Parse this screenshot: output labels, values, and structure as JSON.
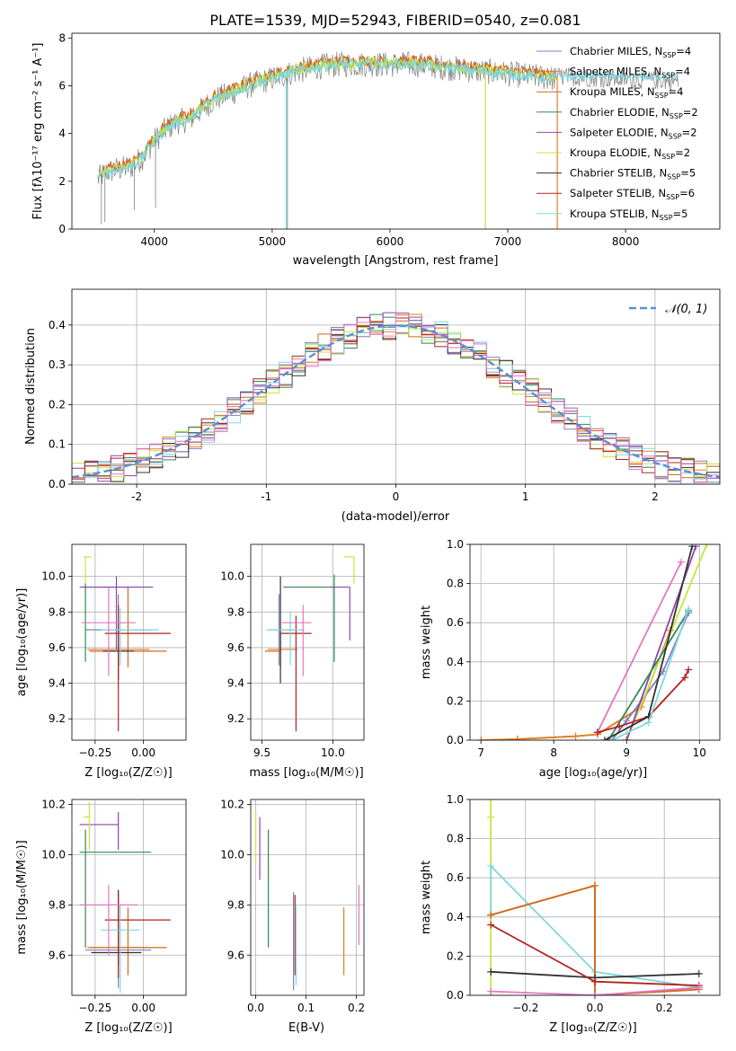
{
  "figure_title": "PLATE=1539, MJD=52943, FIBERID=0540, z=0.081",
  "colors": {
    "chabrier_miles": "#7f7fbf",
    "salpeter_miles": "#e67e22",
    "kroupa_miles": "#d2691e",
    "chabrier_elodie": "#2e8b57",
    "salpeter_elodie": "#8e44ad",
    "kroupa_elodie": "#c7e63a",
    "chabrier_stelib": "#333333",
    "salpeter_stelib": "#b22222",
    "kroupa_stelib": "#7fd7e0",
    "pink": "#e377c2",
    "normal": "#5b8ed6",
    "data": "#808080"
  },
  "chart_data": [
    {
      "id": "spectrum",
      "type": "line",
      "title": "PLATE=1539, MJD=52943, FIBERID=0540, z=0.081",
      "xlabel": "wavelength [Angstrom, rest frame]",
      "ylabel": "Flux [fλ10⁻¹⁷ erg cm⁻² s⁻¹ A⁻¹]",
      "xlim": [
        3300,
        8800
      ],
      "ylim": [
        0,
        8.2
      ],
      "xticks": [
        4000,
        5000,
        6000,
        7000,
        8000
      ],
      "yticks": [
        0,
        2,
        4,
        6,
        8
      ],
      "grid": false,
      "legend_position": "right",
      "legend": [
        {
          "label": "Chabrier MILES, N",
          "sub": "SSP",
          "suffix": "=4",
          "color_key": "chabrier_miles"
        },
        {
          "label": "Salpeter MILES, N",
          "sub": "SSP",
          "suffix": "=4",
          "color_key": "salpeter_miles"
        },
        {
          "label": "Kroupa MILES, N",
          "sub": "SSP",
          "suffix": "=4",
          "color_key": "kroupa_miles"
        },
        {
          "label": "Chabrier ELODIE, N",
          "sub": "SSP",
          "suffix": "=2",
          "color_key": "chabrier_elodie"
        },
        {
          "label": "Salpeter ELODIE, N",
          "sub": "SSP",
          "suffix": "=2",
          "color_key": "salpeter_elodie"
        },
        {
          "label": "Kroupa ELODIE, N",
          "sub": "SSP",
          "suffix": "=2",
          "color_key": "kroupa_elodie"
        },
        {
          "label": "Chabrier STELIB, N",
          "sub": "SSP",
          "suffix": "=5",
          "color_key": "chabrier_stelib"
        },
        {
          "label": "Salpeter STELIB, N",
          "sub": "SSP",
          "suffix": "=6",
          "color_key": "salpeter_stelib"
        },
        {
          "label": "Kroupa STELIB, N",
          "sub": "SSP",
          "suffix": "=5",
          "color_key": "kroupa_stelib"
        }
      ],
      "continuum": {
        "x": [
          3520,
          3600,
          3700,
          3800,
          3900,
          4000,
          4100,
          4200,
          4300,
          4400,
          4500,
          4600,
          4800,
          5000,
          5200,
          5400,
          5600,
          5800,
          6000,
          6200,
          6400,
          6600,
          6800,
          7000,
          7200,
          7400
        ],
        "y": [
          2.1,
          2.4,
          2.5,
          2.6,
          3.0,
          3.7,
          4.2,
          4.5,
          4.6,
          5.0,
          5.4,
          5.6,
          6.0,
          6.3,
          6.6,
          6.8,
          6.9,
          6.9,
          6.9,
          6.9,
          6.8,
          6.7,
          6.6,
          6.5,
          6.4,
          6.3
        ]
      }
    },
    {
      "id": "residuals",
      "type": "step",
      "xlabel": "(data-model)/error",
      "ylabel": "Normed distribution",
      "xlim": [
        -2.5,
        2.5
      ],
      "ylim": [
        0,
        0.49
      ],
      "xticks": [
        -2,
        -1,
        0,
        1,
        2
      ],
      "yticks": [
        0.0,
        0.1,
        0.2,
        0.3,
        0.4
      ],
      "grid": true,
      "legend_position": "top-right",
      "legend": [
        {
          "label": "𝒩(0, 1)",
          "color_key": "normal"
        }
      ],
      "bin_width": 0.1
    },
    {
      "id": "age_vs_Z",
      "type": "errorbar",
      "xlabel": "Z [log₁₀(Z/Z☉)]",
      "ylabel": "age  [log₁₀(age/yr)]",
      "xlim": [
        -0.37,
        0.22
      ],
      "ylim": [
        9.08,
        10.18
      ],
      "xticks": [
        -0.25,
        0.0
      ],
      "xticklabels": [
        "−0.25",
        "0.00"
      ],
      "yticks": [
        9.2,
        9.4,
        9.6,
        9.8,
        10.0
      ],
      "grid": true,
      "points": [
        {
          "x": -0.13,
          "xerr": [
            0.17,
            0.17
          ],
          "y": 9.7,
          "yerr": [
            0.2,
            0.2
          ],
          "color_key": "chabrier_miles"
        },
        {
          "x": -0.13,
          "xerr": [
            0.16,
            0.16
          ],
          "y": 9.59,
          "yerr": [
            0.12,
            0.12
          ],
          "color_key": "salpeter_miles"
        },
        {
          "x": -0.08,
          "xerr": [
            0.2,
            0.2
          ],
          "y": 9.58,
          "yerr": [
            0.09,
            0.36
          ],
          "color_key": "kroupa_miles"
        },
        {
          "x": -0.3,
          "xerr": [
            0.01,
            0.29
          ],
          "y": 9.94,
          "yerr": [
            0.42,
            0.02
          ],
          "color_key": "chabrier_elodie"
        },
        {
          "x": -0.14,
          "xerr": [
            0.19,
            0.19
          ],
          "y": 9.94,
          "yerr": [
            0.35,
            0.06
          ],
          "color_key": "salpeter_elodie"
        },
        {
          "x": -0.3,
          "xerr": [
            0.01,
            0.03
          ],
          "y": 10.11,
          "yerr": [
            0.15,
            0.0
          ],
          "color_key": "kroupa_elodie"
        },
        {
          "x": -0.13,
          "xerr": [
            0.08,
            0.08
          ],
          "y": 9.58,
          "yerr": [
            0.16,
            0.17
          ],
          "color_key": "chabrier_stelib"
        },
        {
          "x": -0.13,
          "xerr": [
            0.07,
            0.27
          ],
          "y": 9.68,
          "yerr": [
            0.55,
            0.16
          ],
          "color_key": "salpeter_stelib"
        },
        {
          "x": -0.12,
          "xerr": [
            0.1,
            0.2
          ],
          "y": 9.7,
          "yerr": [
            0.2,
            0.12
          ],
          "color_key": "kroupa_stelib"
        },
        {
          "x": -0.18,
          "xerr": [
            0.14,
            0.14
          ],
          "y": 9.74,
          "yerr": [
            0.3,
            0.2
          ],
          "color_key": "pink"
        }
      ]
    },
    {
      "id": "age_vs_mass",
      "type": "errorbar",
      "xlabel": "mass [log₁₀(M/M☉)]",
      "xlim": [
        9.42,
        10.22
      ],
      "ylim": [
        9.08,
        10.18
      ],
      "xticks": [
        9.5,
        10.0
      ],
      "xticklabels": [
        "9.5",
        "10.0"
      ],
      "yticks": [
        9.2,
        9.4,
        9.6,
        9.8,
        10.0
      ],
      "grid": true,
      "points": [
        {
          "x": 9.62,
          "xerr": [
            0.07,
            0.13
          ],
          "y": 9.7,
          "yerr": [
            0.2,
            0.2
          ],
          "color_key": "chabrier_miles"
        },
        {
          "x": 9.63,
          "xerr": [
            0.09,
            0.12
          ],
          "y": 9.59,
          "yerr": [
            0.1,
            0.1
          ],
          "color_key": "salpeter_miles"
        },
        {
          "x": 9.63,
          "xerr": [
            0.11,
            0.0
          ],
          "y": 9.58,
          "yerr": [
            0.1,
            0.1
          ],
          "color_key": "kroupa_miles"
        },
        {
          "x": 10.01,
          "xerr": [
            0.36,
            0.0
          ],
          "y": 9.94,
          "yerr": [
            0.42,
            0.07
          ],
          "color_key": "chabrier_elodie"
        },
        {
          "x": 10.12,
          "xerr": [
            0.14,
            0.0
          ],
          "y": 9.94,
          "yerr": [
            0.3,
            0.0
          ],
          "color_key": "salpeter_elodie"
        },
        {
          "x": 10.15,
          "xerr": [
            0.07,
            0.0
          ],
          "y": 10.11,
          "yerr": [
            0.15,
            0.0
          ],
          "color_key": "kroupa_elodie"
        },
        {
          "x": 9.63,
          "xerr": [
            0.0,
            0.0
          ],
          "y": 9.6,
          "yerr": [
            0.2,
            0.4
          ],
          "color_key": "chabrier_stelib"
        },
        {
          "x": 9.74,
          "xerr": [
            0.11,
            0.11
          ],
          "y": 9.68,
          "yerr": [
            0.55,
            0.1
          ],
          "color_key": "salpeter_stelib"
        },
        {
          "x": 9.7,
          "xerr": [
            0.17,
            0.1
          ],
          "y": 9.7,
          "yerr": [
            0.2,
            0.1
          ],
          "color_key": "kroupa_stelib"
        },
        {
          "x": 9.79,
          "xerr": [
            0.15,
            0.06
          ],
          "y": 9.74,
          "yerr": [
            0.3,
            0.1
          ],
          "color_key": "pink"
        }
      ]
    },
    {
      "id": "massweight_vs_age",
      "type": "line",
      "xlabel": "age  [log₁₀(age/yr)]",
      "ylabel": "mass weight",
      "xlim": [
        6.85,
        10.28
      ],
      "ylim": [
        0,
        1.0
      ],
      "xticks": [
        7,
        8,
        9,
        10
      ],
      "yticks": [
        0.0,
        0.2,
        0.4,
        0.6,
        0.8,
        1.0
      ],
      "grid": true,
      "series": [
        {
          "color_key": "kroupa_miles",
          "x": [
            7.0,
            7.5,
            8.3,
            8.6,
            9.2,
            9.6
          ],
          "y": [
            0.0,
            0.005,
            0.02,
            0.03,
            0.17,
            0.56
          ]
        },
        {
          "color_key": "salpeter_miles",
          "x": [
            7.0,
            7.5,
            8.3,
            8.6,
            9.2,
            9.6
          ],
          "y": [
            0.0,
            0.005,
            0.02,
            0.03,
            0.17,
            0.56
          ]
        },
        {
          "color_key": "chabrier_miles",
          "x": [
            8.8,
            9.0,
            9.5,
            9.85
          ],
          "y": [
            0.0,
            0.1,
            0.35,
            0.65
          ]
        },
        {
          "color_key": "kroupa_elodie",
          "x": [
            9.0,
            10.1
          ],
          "y": [
            0.0,
            1.0
          ]
        },
        {
          "color_key": "salpeter_elodie",
          "x": [
            9.0,
            9.95
          ],
          "y": [
            0.0,
            0.99
          ]
        },
        {
          "color_key": "chabrier_elodie",
          "x": [
            8.75,
            9.85
          ],
          "y": [
            0.0,
            0.66
          ]
        },
        {
          "color_key": "pink",
          "x": [
            8.6,
            9.75
          ],
          "y": [
            0.04,
            0.91
          ]
        },
        {
          "color_key": "salpeter_stelib",
          "x": [
            8.6,
            8.9,
            9.3,
            9.8,
            9.85
          ],
          "y": [
            0.04,
            0.07,
            0.12,
            0.32,
            0.36
          ]
        },
        {
          "color_key": "chabrier_stelib",
          "x": [
            8.7,
            9.3,
            9.9
          ],
          "y": [
            0.0,
            0.12,
            0.99
          ]
        },
        {
          "color_key": "kroupa_stelib",
          "x": [
            8.8,
            9.3,
            9.85
          ],
          "y": [
            0.0,
            0.09,
            0.67
          ]
        }
      ]
    },
    {
      "id": "mass_vs_Z",
      "type": "errorbar",
      "xlabel": "Z [log₁₀(Z/Z☉)]",
      "ylabel": "mass [log₁₀(M/M☉)]",
      "xlim": [
        -0.37,
        0.22
      ],
      "ylim": [
        9.44,
        10.22
      ],
      "xticks": [
        -0.25,
        0.0
      ],
      "xticklabels": [
        "−0.25",
        "0.00"
      ],
      "yticks": [
        9.6,
        9.8,
        10.0,
        10.2
      ],
      "grid": true,
      "points": [
        {
          "x": -0.13,
          "xerr": [
            0.17,
            0.17
          ],
          "y": 9.62,
          "yerr": [
            0.15,
            0.2
          ],
          "color_key": "chabrier_miles"
        },
        {
          "x": -0.13,
          "xerr": [
            0.16,
            0.16
          ],
          "y": 9.63,
          "yerr": [
            0.1,
            0.1
          ],
          "color_key": "salpeter_miles"
        },
        {
          "x": -0.08,
          "xerr": [
            0.2,
            0.2
          ],
          "y": 9.63,
          "yerr": [
            0.11,
            0.16
          ],
          "color_key": "kroupa_miles"
        },
        {
          "x": -0.3,
          "xerr": [
            0.03,
            0.34
          ],
          "y": 10.01,
          "yerr": [
            0.38,
            0.09
          ],
          "color_key": "chabrier_elodie"
        },
        {
          "x": -0.13,
          "xerr": [
            0.2,
            0.0
          ],
          "y": 10.12,
          "yerr": [
            0.1,
            0.05
          ],
          "color_key": "salpeter_elodie"
        },
        {
          "x": -0.28,
          "xerr": [
            0.03,
            0.0
          ],
          "y": 10.15,
          "yerr": [
            0.13,
            0.06
          ],
          "color_key": "kroupa_elodie"
        },
        {
          "x": -0.13,
          "xerr": [
            0.14,
            0.12
          ],
          "y": 9.61,
          "yerr": [
            0.05,
            0.25
          ],
          "color_key": "chabrier_stelib"
        },
        {
          "x": -0.13,
          "xerr": [
            0.07,
            0.27
          ],
          "y": 9.74,
          "yerr": [
            0.23,
            0.11
          ],
          "color_key": "salpeter_stelib"
        },
        {
          "x": -0.12,
          "xerr": [
            0.1,
            0.1
          ],
          "y": 9.7,
          "yerr": [
            0.25,
            0.1
          ],
          "color_key": "kroupa_stelib"
        },
        {
          "x": -0.18,
          "xerr": [
            0.15,
            0.15
          ],
          "y": 9.8,
          "yerr": [
            0.2,
            0.08
          ],
          "color_key": "pink"
        }
      ]
    },
    {
      "id": "mass_vs_ebv",
      "type": "errorbar",
      "xlabel": "E(B-V)",
      "xlim": [
        -0.01,
        0.215
      ],
      "ylim": [
        9.44,
        10.22
      ],
      "xticks": [
        0.0,
        0.1,
        0.2
      ],
      "xticklabels": [
        "0.0",
        "0.1",
        "0.2"
      ],
      "yticks": [
        9.6,
        9.8,
        10.0,
        10.2
      ],
      "grid": true,
      "points": [
        {
          "x": 0.075,
          "xerr": [
            0,
            0
          ],
          "y": 9.7,
          "yerr": [
            0.24,
            0.15
          ],
          "color_key": "chabrier_miles"
        },
        {
          "x": 0.175,
          "xerr": [
            0,
            0
          ],
          "y": 9.65,
          "yerr": [
            0.13,
            0.14
          ],
          "color_key": "salpeter_miles"
        },
        {
          "x": 0.0,
          "xerr": [
            0,
            0
          ],
          "y": 10.12,
          "yerr": [
            0.15,
            0.05
          ],
          "color_key": "kroupa_elodie"
        },
        {
          "x": 0.008,
          "xerr": [
            0,
            0
          ],
          "y": 10.05,
          "yerr": [
            0.15,
            0.1
          ],
          "color_key": "salpeter_elodie"
        },
        {
          "x": 0.025,
          "xerr": [
            0,
            0
          ],
          "y": 9.85,
          "yerr": [
            0.22,
            0.25
          ],
          "color_key": "chabrier_elodie"
        },
        {
          "x": 0.078,
          "xerr": [
            0,
            0
          ],
          "y": 9.72,
          "yerr": [
            0.2,
            0.12
          ],
          "color_key": "salpeter_stelib"
        },
        {
          "x": 0.08,
          "xerr": [
            0,
            0
          ],
          "y": 9.7,
          "yerr": [
            0.22,
            0.1
          ],
          "color_key": "kroupa_stelib"
        },
        {
          "x": 0.205,
          "xerr": [
            0,
            0
          ],
          "y": 9.76,
          "yerr": [
            0.12,
            0.12
          ],
          "color_key": "pink"
        }
      ]
    },
    {
      "id": "massweight_vs_Z",
      "type": "line",
      "xlabel": "Z [log₁₀(Z/Z☉)]",
      "ylabel": "mass weight",
      "xlim": [
        -0.36,
        0.36
      ],
      "ylim": [
        0,
        1.0
      ],
      "xticks": [
        -0.2,
        0.0,
        0.2
      ],
      "xticklabels": [
        "−0.2",
        "0.0",
        "0.2"
      ],
      "yticks": [
        0.0,
        0.2,
        0.4,
        0.6,
        0.8,
        1.0
      ],
      "grid": true,
      "series": [
        {
          "color_key": "kroupa_elodie",
          "x": [
            -0.3,
            -0.3,
            -0.3
          ],
          "y": [
            0.0,
            0.91,
            1.0
          ]
        },
        {
          "color_key": "kroupa_stelib",
          "x": [
            -0.3,
            -0.3,
            0.0,
            0.3
          ],
          "y": [
            0.41,
            0.66,
            0.12,
            0.04
          ]
        },
        {
          "color_key": "salpeter_miles",
          "x": [
            -0.3,
            0.0,
            0.0,
            0.3
          ],
          "y": [
            0.41,
            0.56,
            0.0,
            0.03
          ]
        },
        {
          "color_key": "kroupa_miles",
          "x": [
            -0.3,
            0.0,
            0.0,
            0.3
          ],
          "y": [
            0.41,
            0.56,
            0.0,
            0.03
          ]
        },
        {
          "color_key": "chabrier_stelib",
          "x": [
            -0.3,
            0.0,
            0.3
          ],
          "y": [
            0.12,
            0.09,
            0.11
          ]
        },
        {
          "color_key": "salpeter_stelib",
          "x": [
            -0.3,
            0.0,
            0.3
          ],
          "y": [
            0.36,
            0.07,
            0.05
          ]
        },
        {
          "color_key": "pink",
          "x": [
            -0.3,
            0.0,
            0.3
          ],
          "y": [
            0.02,
            0.0,
            0.04
          ]
        }
      ]
    }
  ]
}
